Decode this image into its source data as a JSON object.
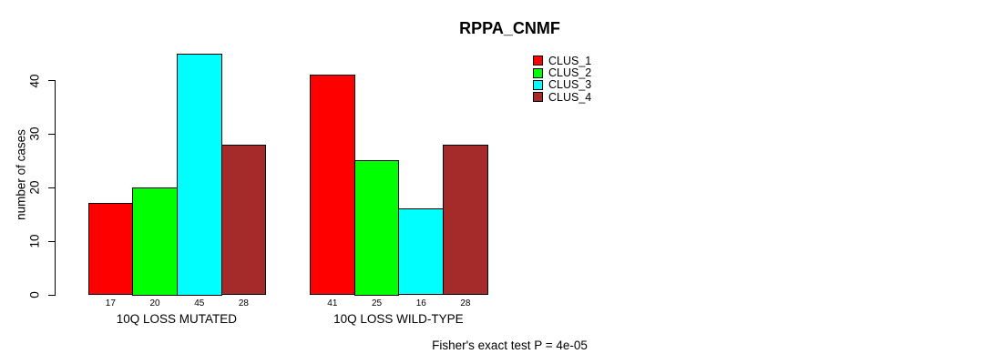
{
  "chart_data": {
    "type": "bar",
    "title": "RPPA_CNMF",
    "ylabel": "number of cases",
    "xlabel": "",
    "categories": [
      "10Q LOSS MUTATED",
      "10Q LOSS WILD-TYPE"
    ],
    "series": [
      {
        "name": "CLUS_1",
        "color": "#FF0000",
        "values": [
          17,
          41
        ]
      },
      {
        "name": "CLUS_2",
        "color": "#00FF00",
        "values": [
          20,
          25
        ]
      },
      {
        "name": "CLUS_3",
        "color": "#00FFFF",
        "values": [
          45,
          16
        ]
      },
      {
        "name": "CLUS_4",
        "color": "#A52A2A",
        "values": [
          28,
          28
        ]
      }
    ],
    "yticks": [
      "0",
      "10",
      "20",
      "30",
      "40"
    ],
    "ylim": [
      0,
      45
    ],
    "grid": false,
    "legend_position": "top-right",
    "bar_value_labels_shown": true,
    "annotation": "Fisher's exact test P = 4e-05"
  }
}
